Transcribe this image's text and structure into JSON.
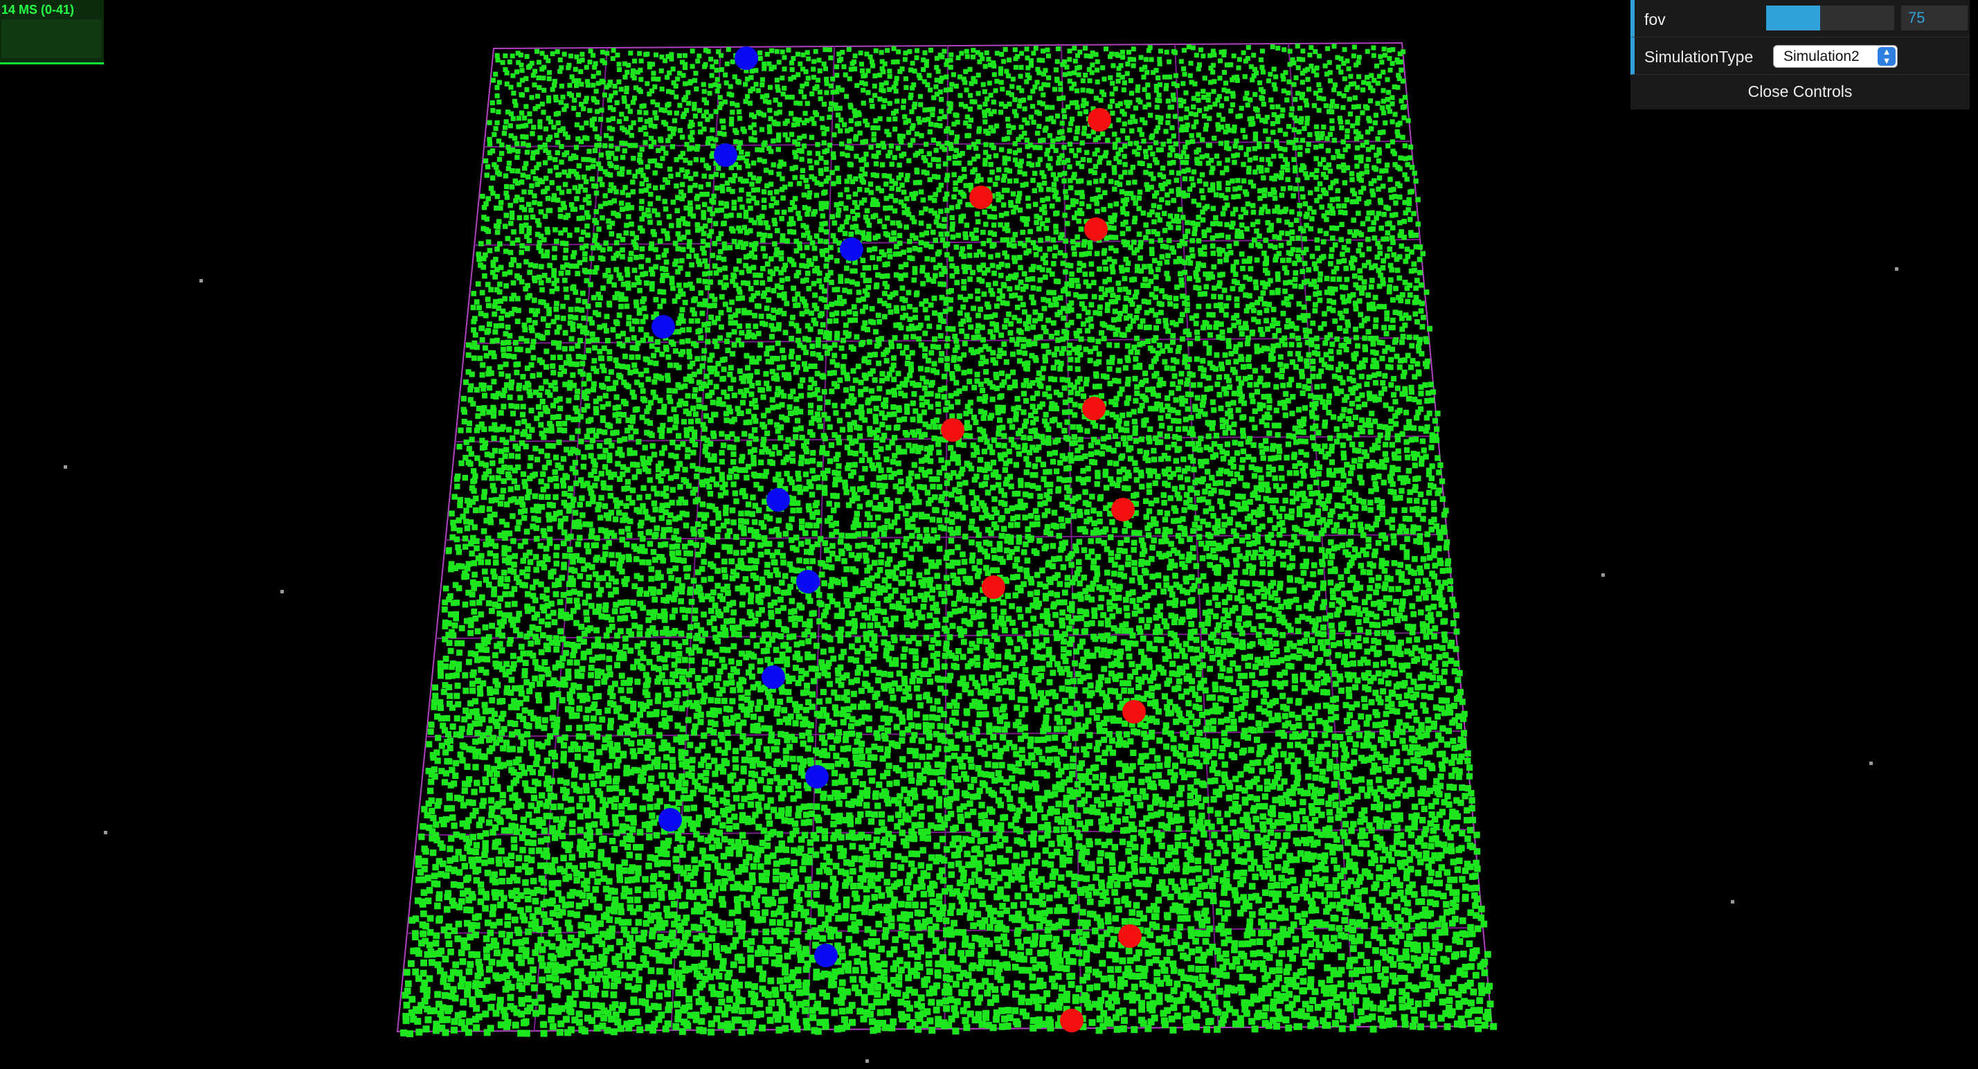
{
  "stats": {
    "label": "14 MS (0-41)"
  },
  "controls": {
    "fov": {
      "label": "fov",
      "value": "75",
      "fill_fraction": 0.42
    },
    "simulation_type": {
      "label": "SimulationType",
      "selected": "Simulation2"
    },
    "close_label": "Close Controls"
  },
  "colors": {
    "background": "#000000",
    "particles": "#1ee61e",
    "grid_lines": "#7a1e8a",
    "blue_agents": "#0a0af5",
    "red_agents": "#f51010",
    "accent": "#2fa1d6"
  },
  "scene": {
    "blue_agent_count": 12,
    "red_agent_count": 11
  }
}
